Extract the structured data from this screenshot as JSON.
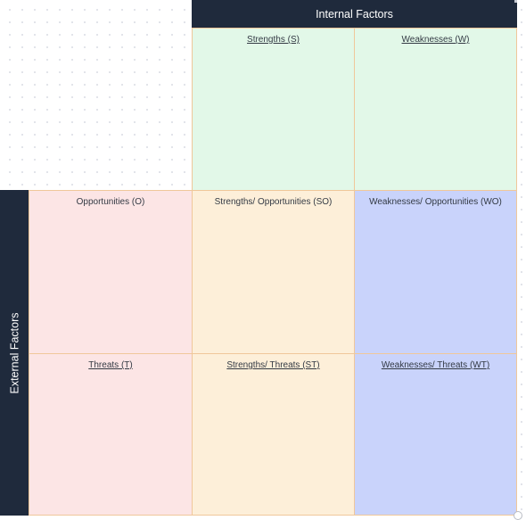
{
  "headers": {
    "internal": "Internal Factors",
    "external": "External Factors"
  },
  "cells": {
    "strengths": "Strengths (S)",
    "weaknesses": "Weaknesses (W)",
    "opportunities": "Opportunities (O)",
    "threats": "Threats (T)",
    "so": "Strengths/ Opportunities (SO)",
    "wo": "Weaknesses/ Opportunities (WO)",
    "st": "Strengths/ Threats (ST)",
    "wt": "Weaknesses/ Threats (WT)"
  },
  "colors": {
    "header": "#1f2a3c",
    "internal_row": "#e2f8e8",
    "external_column": "#fce5e5",
    "strength_column": "#fdefd9",
    "weakness_column": "#c9d3fb",
    "border": "#f0c79a"
  }
}
